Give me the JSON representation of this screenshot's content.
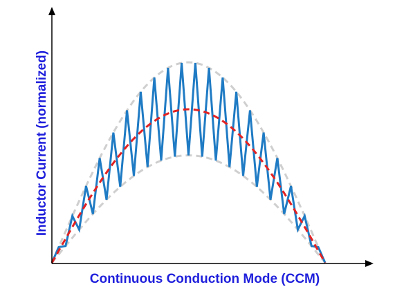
{
  "axes": {
    "y_label": "Inductor Current (normalized)",
    "x_label": "Continuous Conduction Mode (CCM)"
  }
}
